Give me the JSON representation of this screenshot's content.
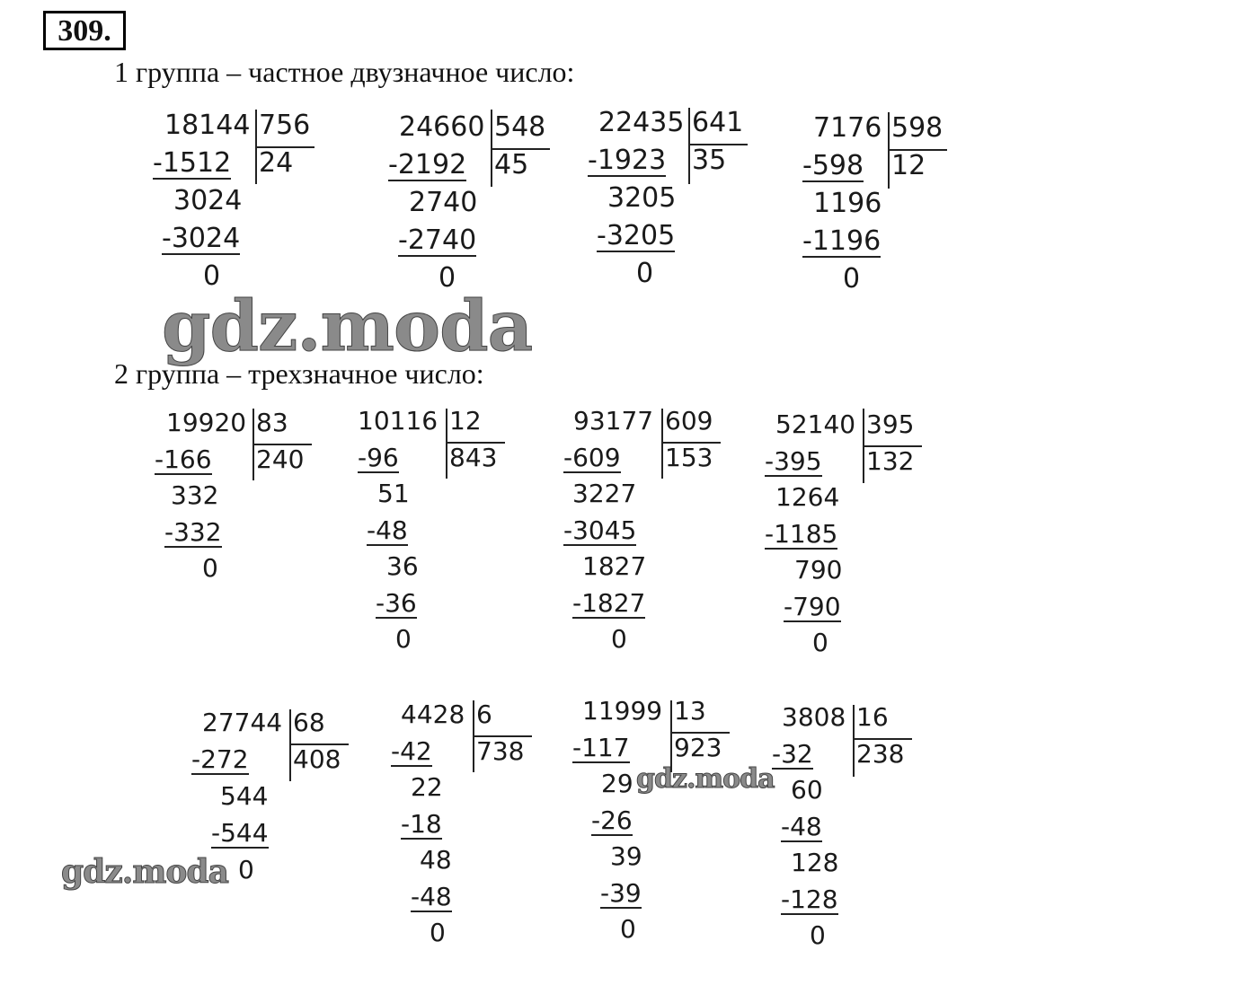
{
  "title": "309.",
  "group1_heading": "1 группа – частное двузначное число:",
  "group2_heading": "2 группа – трехзначное число:",
  "watermarks": [
    "gdz.moda",
    "gdz.moda",
    "gdz.moda"
  ],
  "divisions": [
    {
      "dividend": "18144",
      "divisor": "756",
      "quotient": "24",
      "steps": [
        "-1512",
        "3024",
        "-3024",
        "0"
      ]
    },
    {
      "dividend": "24660",
      "divisor": "548",
      "quotient": "45",
      "steps": [
        "-2192",
        "2740",
        "-2740",
        "0"
      ]
    },
    {
      "dividend": "22435",
      "divisor": "641",
      "quotient": "35",
      "steps": [
        "-1923",
        "3205",
        "-3205",
        "0"
      ]
    },
    {
      "dividend": "7176",
      "divisor": "598",
      "quotient": "12",
      "steps": [
        "-598",
        "1196",
        "-1196",
        "0"
      ]
    },
    {
      "dividend": "19920",
      "divisor": "83",
      "quotient": "240",
      "steps": [
        "-166",
        "332",
        "-332",
        "0"
      ]
    },
    {
      "dividend": "10116",
      "divisor": "12",
      "quotient": "843",
      "steps": [
        "-96",
        "51",
        "-48",
        "36",
        "-36",
        "0"
      ]
    },
    {
      "dividend": "93177",
      "divisor": "609",
      "quotient": "153",
      "steps": [
        "-609",
        "3227",
        "-3045",
        "1827",
        "-1827",
        "0"
      ]
    },
    {
      "dividend": "52140",
      "divisor": "395",
      "quotient": "132",
      "steps": [
        "-395",
        "1264",
        "-1185",
        "790",
        "-790",
        "0"
      ]
    },
    {
      "dividend": "27744",
      "divisor": "68",
      "quotient": "408",
      "steps": [
        "-272",
        "544",
        "-544",
        "0"
      ]
    },
    {
      "dividend": "4428",
      "divisor": "6",
      "quotient": "738",
      "steps": [
        "-42",
        "22",
        "-18",
        "48",
        "-48",
        "0"
      ]
    },
    {
      "dividend": "11999",
      "divisor": "13",
      "quotient": "923",
      "steps": [
        "-117",
        "29",
        "-26",
        "39",
        "-39",
        "0"
      ]
    },
    {
      "dividend": "3808",
      "divisor": "16",
      "quotient": "238",
      "steps": [
        "-32",
        "60",
        "-48",
        "128",
        "-128",
        "0"
      ]
    }
  ]
}
